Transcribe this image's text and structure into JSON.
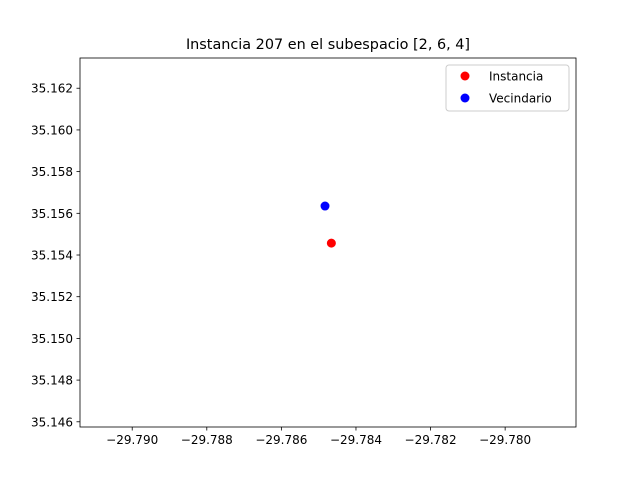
{
  "chart_data": {
    "type": "scatter",
    "title": "Instancia 207 en el subespacio [2, 6, 4]",
    "xlabel": "",
    "ylabel": "",
    "xlim": [
      -29.7914,
      -29.7781
    ],
    "ylim": [
      35.14575,
      35.16345
    ],
    "x_ticks": [
      -29.79,
      -29.788,
      -29.786,
      -29.784,
      -29.782,
      -29.78
    ],
    "x_tick_labels": [
      "−29.790",
      "−29.788",
      "−29.786",
      "−29.784",
      "−29.782",
      "−29.780"
    ],
    "y_ticks": [
      35.146,
      35.148,
      35.15,
      35.152,
      35.154,
      35.156,
      35.158,
      35.16,
      35.162
    ],
    "y_tick_labels": [
      "35.146",
      "35.148",
      "35.150",
      "35.152",
      "35.154",
      "35.156",
      "35.158",
      "35.160",
      "35.162"
    ],
    "grid": false,
    "legend_position": "top-right",
    "series": [
      {
        "name": "Instancia",
        "color": "#ff0000",
        "points": [
          [
            -29.78466,
            35.15457
          ]
        ]
      },
      {
        "name": "Vecindario",
        "color": "#0000ff",
        "points": [
          [
            -29.78483,
            35.15635
          ]
        ]
      }
    ]
  }
}
